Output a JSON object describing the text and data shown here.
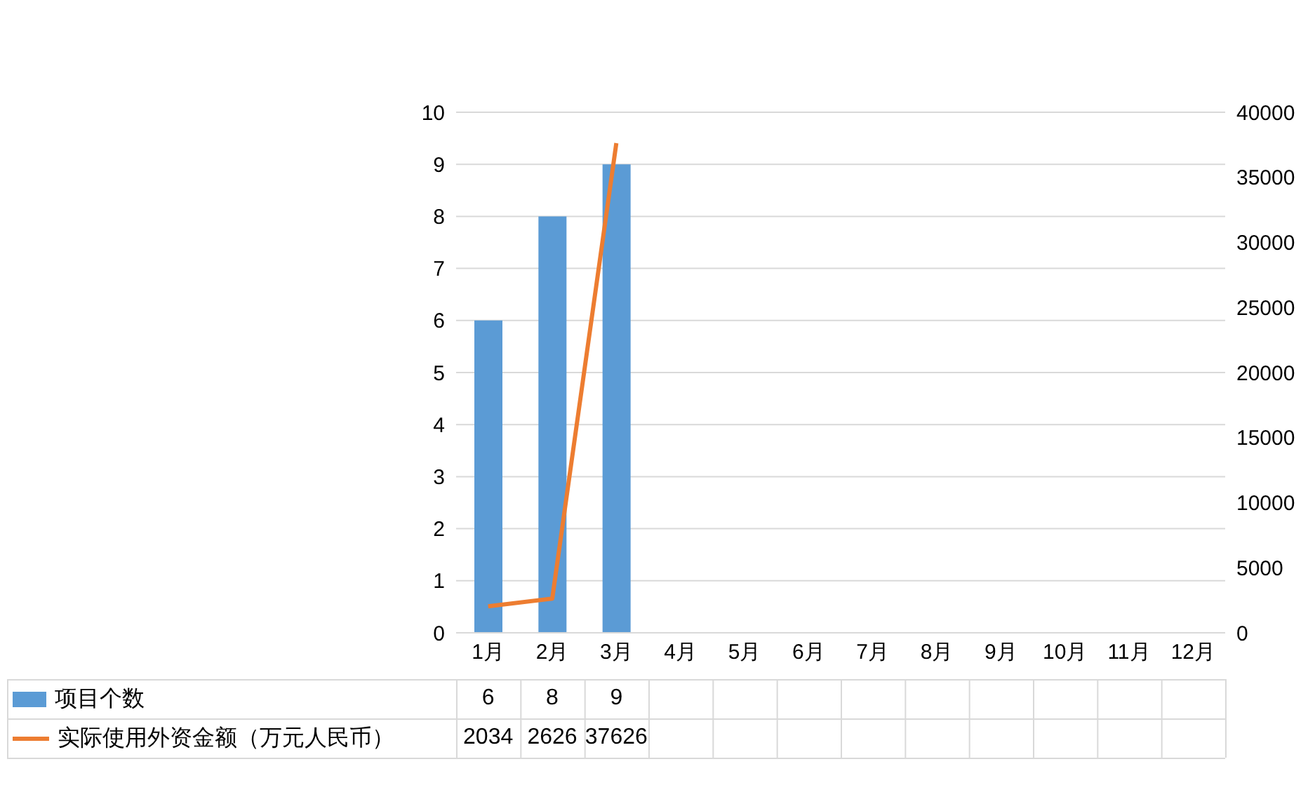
{
  "chart_data": {
    "type": "bar",
    "categories": [
      "1月",
      "2月",
      "3月",
      "4月",
      "5月",
      "6月",
      "7月",
      "8月",
      "9月",
      "10月",
      "11月",
      "12月"
    ],
    "series": [
      {
        "name": "项目个数",
        "color": "#5b9bd5",
        "values": [
          6,
          8,
          9,
          null,
          null,
          null,
          null,
          null,
          null,
          null,
          null,
          null
        ]
      },
      {
        "name": "实际使用外资金额（万元人民币）",
        "type": "line",
        "axis": "y2",
        "color": "#ed7d31",
        "values": [
          2034,
          2626,
          37626,
          null,
          null,
          null,
          null,
          null,
          null,
          null,
          null,
          null
        ]
      }
    ],
    "ylim": [
      0,
      10
    ],
    "yticks": [
      0,
      1,
      2,
      3,
      4,
      5,
      6,
      7,
      8,
      9,
      10
    ],
    "y2lim": [
      0,
      40000
    ],
    "y2ticks": [
      0,
      5000,
      10000,
      15000,
      20000,
      25000,
      30000,
      35000,
      40000
    ],
    "grid": "y",
    "legend": "bottom left",
    "data_labels": true,
    "marker": "none",
    "line_style": "solid"
  }
}
